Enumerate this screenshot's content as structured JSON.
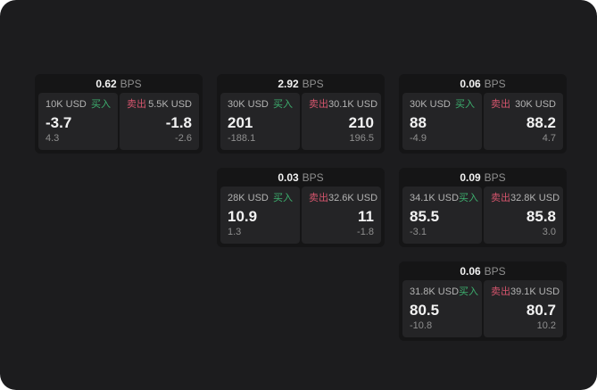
{
  "colors": {
    "surface": "#1c1c1e",
    "card_bg": "#151516",
    "panel_bg": "#242426",
    "text_primary": "#f2f2f2",
    "text_secondary": "#8f8f8f",
    "text_label": "#b3b3b3",
    "buy_green": "#3daf6e",
    "sell_red": "#d5556d"
  },
  "cards": [
    {
      "bps": "0.62",
      "unit": "BPS",
      "grid": {
        "col": 1,
        "row": 1
      },
      "buy": {
        "amount": "10K USD",
        "tag": "买入",
        "price": "-3.7",
        "sub": "4.3"
      },
      "sell": {
        "tag": "卖出",
        "amount": "5.5K USD",
        "price": "-1.8",
        "sub": "-2.6"
      }
    },
    {
      "bps": "2.92",
      "unit": "BPS",
      "grid": {
        "col": 2,
        "row": 1
      },
      "buy": {
        "amount": "30K USD",
        "tag": "买入",
        "price": "201",
        "sub": "-188.1"
      },
      "sell": {
        "tag": "卖出",
        "amount": "30.1K USD",
        "price": "210",
        "sub": "196.5"
      }
    },
    {
      "bps": "0.06",
      "unit": "BPS",
      "grid": {
        "col": 3,
        "row": 1
      },
      "buy": {
        "amount": "30K USD",
        "tag": "买入",
        "price": "88",
        "sub": "-4.9"
      },
      "sell": {
        "tag": "卖出",
        "amount": "30K USD",
        "price": "88.2",
        "sub": "4.7"
      }
    },
    {
      "bps": "0.03",
      "unit": "BPS",
      "grid": {
        "col": 2,
        "row": 2
      },
      "buy": {
        "amount": "28K USD",
        "tag": "买入",
        "price": "10.9",
        "sub": "1.3"
      },
      "sell": {
        "tag": "卖出",
        "amount": "32.6K USD",
        "price": "11",
        "sub": "-1.8"
      }
    },
    {
      "bps": "0.09",
      "unit": "BPS",
      "grid": {
        "col": 3,
        "row": 2
      },
      "buy": {
        "amount": "34.1K USD",
        "tag": "买入",
        "price": "85.5",
        "sub": "-3.1"
      },
      "sell": {
        "tag": "卖出",
        "amount": "32.8K USD",
        "price": "85.8",
        "sub": "3.0"
      }
    },
    {
      "bps": "0.06",
      "unit": "BPS",
      "grid": {
        "col": 3,
        "row": 3
      },
      "buy": {
        "amount": "31.8K USD",
        "tag": "买入",
        "price": "80.5",
        "sub": "-10.8"
      },
      "sell": {
        "tag": "卖出",
        "amount": "39.1K USD",
        "price": "80.7",
        "sub": "10.2"
      }
    }
  ]
}
